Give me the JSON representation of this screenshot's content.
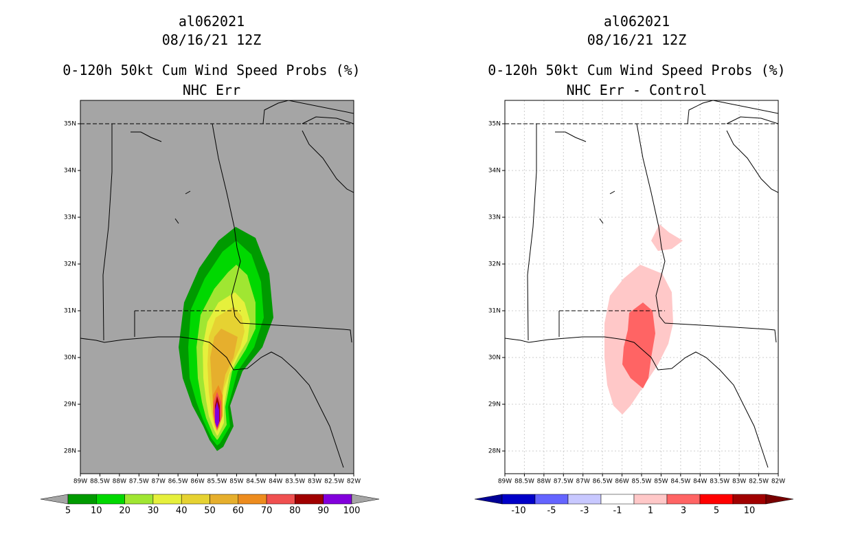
{
  "left": {
    "title1": "al062021",
    "title2": "08/16/21 12Z",
    "title3": "0-120h 50kt Cum Wind Speed Probs (%)",
    "title4": "NHC Err",
    "colorbar": [
      "5",
      "10",
      "20",
      "30",
      "40",
      "50",
      "60",
      "70",
      "80",
      "90",
      "100"
    ]
  },
  "right": {
    "title1": "al062021",
    "title2": "08/16/21 12Z",
    "title3": "0-120h 50kt Cum Wind Speed Probs (%)",
    "title4": "NHC Err - Control",
    "colorbar": [
      "-10",
      "-5",
      "-3",
      "-1",
      "1",
      "3",
      "5",
      "10"
    ]
  },
  "axes": {
    "lat": [
      "35N",
      "34N",
      "33N",
      "32N",
      "31N",
      "30N",
      "29N",
      "28N"
    ],
    "lon": [
      "89W",
      "88.5W",
      "88W",
      "87.5W",
      "87W",
      "86.5W",
      "86W",
      "85.5W",
      "85W",
      "84.5W",
      "84W",
      "83.5W",
      "83W",
      "82.5W",
      "82W"
    ]
  },
  "colors": {
    "left_scale": [
      "#009a00",
      "#00d800",
      "#a0e632",
      "#e6f03c",
      "#e6d232",
      "#e6af2d",
      "#ed8c1e",
      "#f05050",
      "#a00000",
      "#8200dc"
    ],
    "right_scale": [
      "#0000c8",
      "#6464ff",
      "#c8c8ff",
      "#ffffff",
      "#ffc8c8",
      "#ff6464",
      "#ff0000",
      "#a00000"
    ],
    "map_bg_left": "#a5a5a5",
    "map_bg_right": "#ffffff"
  }
}
